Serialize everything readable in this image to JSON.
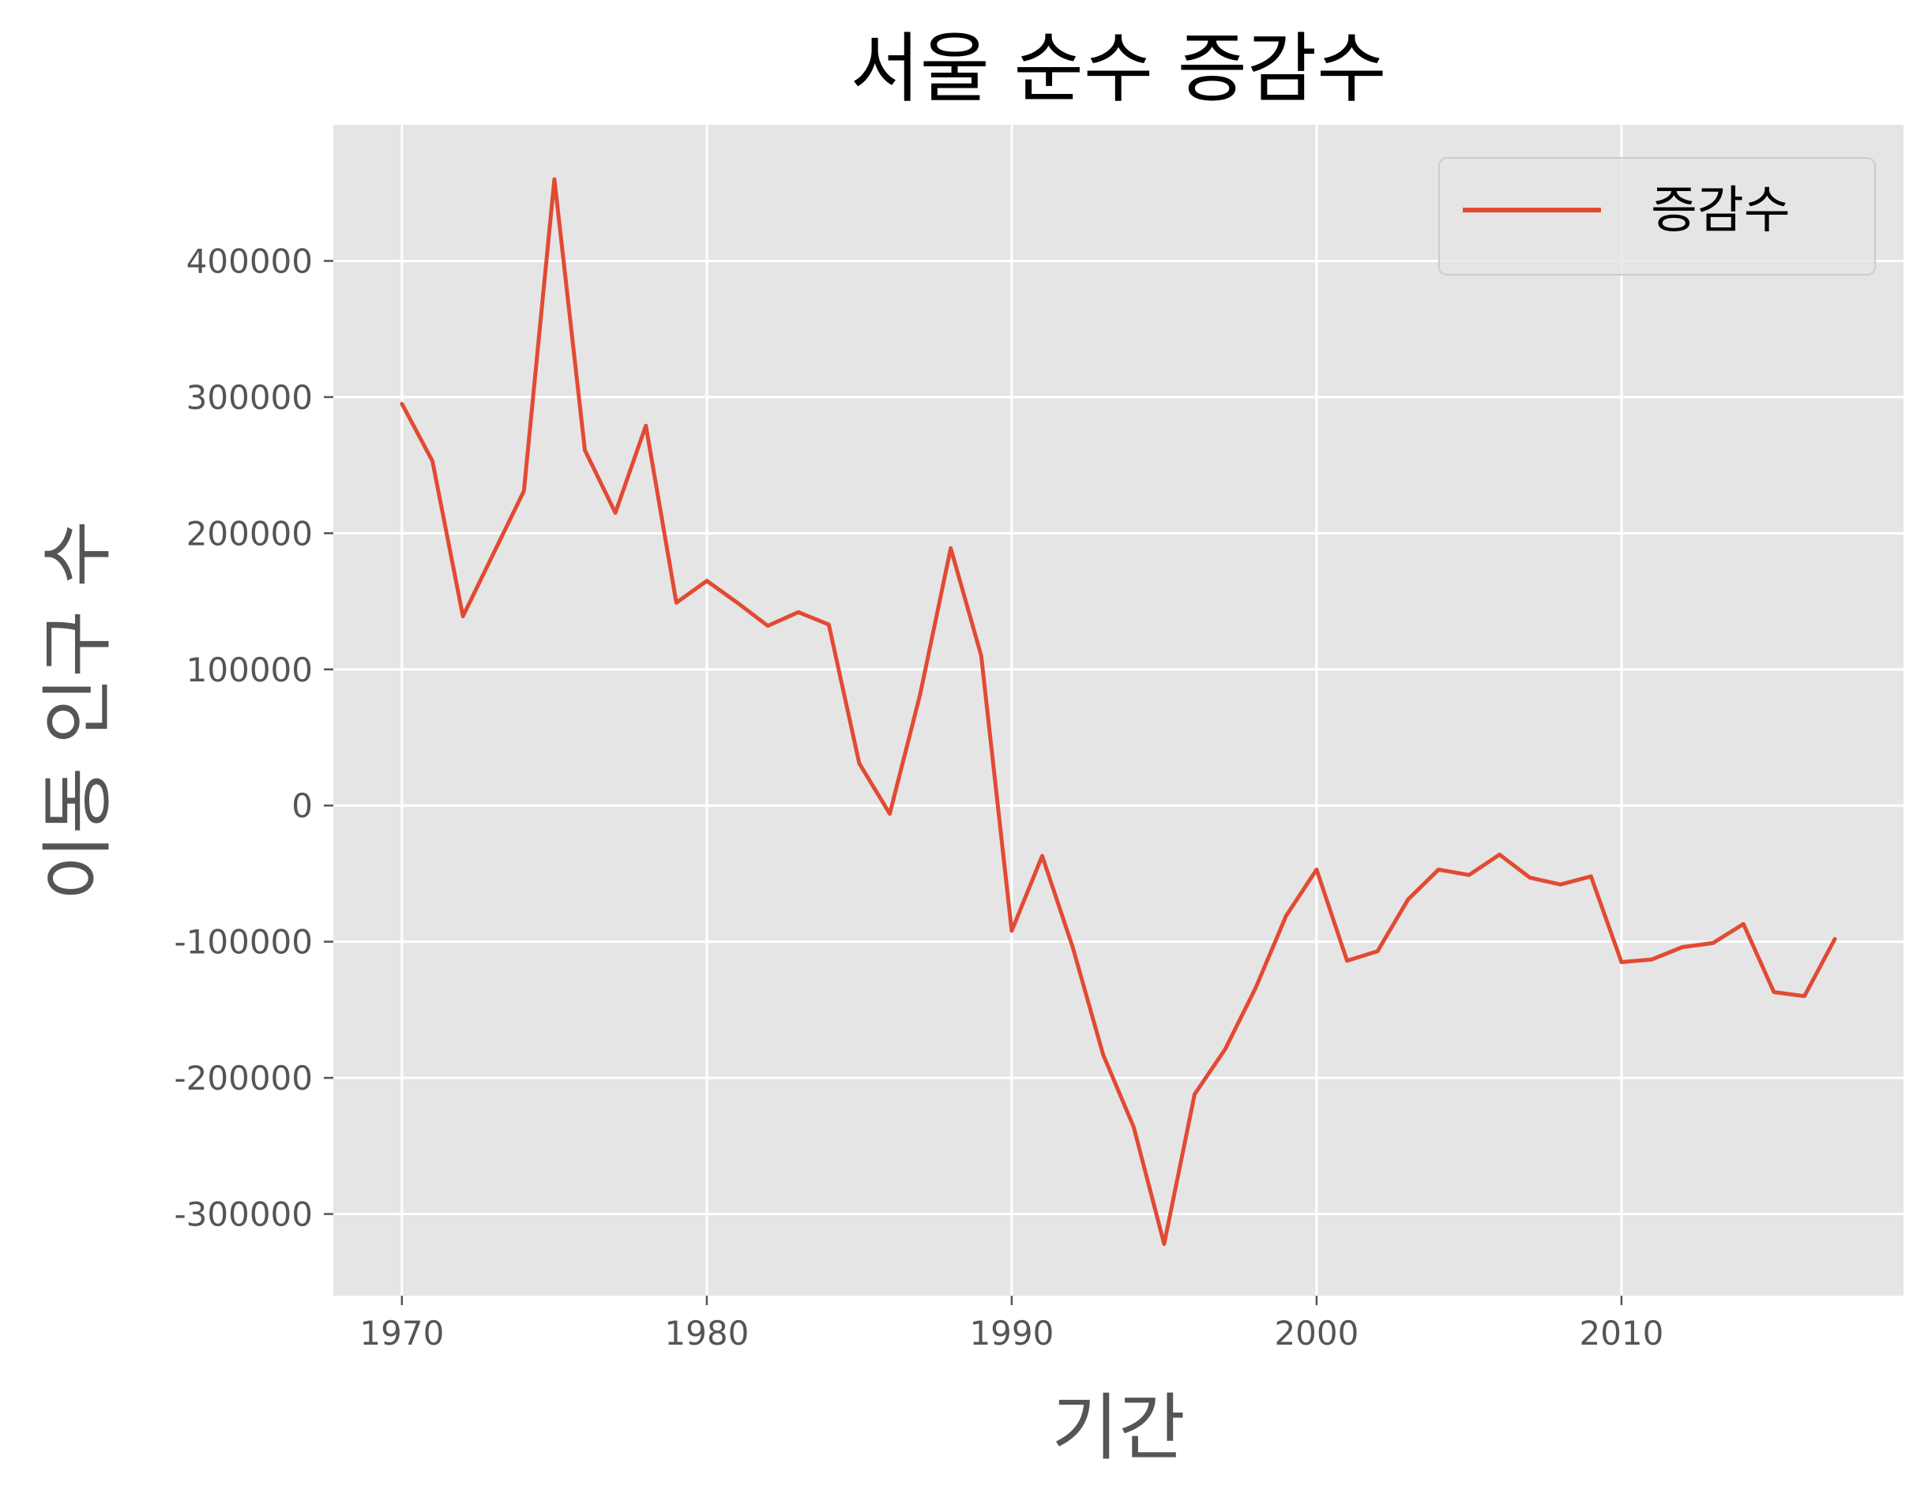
{
  "chart_data": {
    "type": "line",
    "title": "서울 순수 증감수",
    "xlabel": "기간",
    "ylabel": "이동 인구 수",
    "xlim": [
      1967.75,
      2019.25
    ],
    "ylim": [
      -360000,
      500000
    ],
    "x_ticks": [
      1970,
      1980,
      1990,
      2000,
      2010
    ],
    "x_tick_labels": [
      "1970",
      "1980",
      "1990",
      "2000",
      "2010"
    ],
    "y_ticks": [
      400000,
      300000,
      200000,
      100000,
      0,
      -100000,
      -200000,
      -300000
    ],
    "y_tick_labels": [
      "400000",
      "300000",
      "200000",
      "100000",
      "0",
      "-100000",
      "-200000",
      "-300000"
    ],
    "grid": true,
    "legend_position": "top-right",
    "background_color": "#e5e5e5",
    "series": [
      {
        "name": "증감수",
        "color": "#e24a33",
        "x": [
          1970,
          1971,
          1972,
          1973,
          1974,
          1975,
          1976,
          1977,
          1978,
          1979,
          1980,
          1981,
          1982,
          1983,
          1984,
          1985,
          1986,
          1987,
          1988,
          1989,
          1990,
          1991,
          1992,
          1993,
          1994,
          1995,
          1996,
          1997,
          1998,
          1999,
          2000,
          2001,
          2002,
          2003,
          2004,
          2005,
          2006,
          2007,
          2008,
          2009,
          2010,
          2011,
          2012,
          2013,
          2014,
          2015,
          2016,
          2017
        ],
        "values": [
          295000,
          253000,
          139000,
          185000,
          231000,
          460000,
          261000,
          215000,
          279000,
          149000,
          165000,
          149000,
          132000,
          142000,
          133000,
          31000,
          -6000,
          82000,
          189000,
          110000,
          -92000,
          -37000,
          -104000,
          -183000,
          -236000,
          -322000,
          -212000,
          -179000,
          -134000,
          -81000,
          -47000,
          -114000,
          -107000,
          -69000,
          -47000,
          -51000,
          -36000,
          -53000,
          -58000,
          -52000,
          -115000,
          -113000,
          -104000,
          -101000,
          -87000,
          -137000,
          -140000,
          -98000
        ]
      }
    ]
  }
}
